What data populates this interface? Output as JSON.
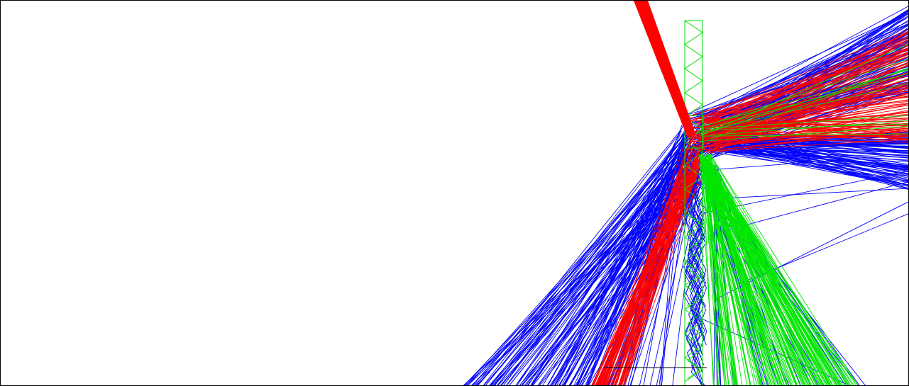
{
  "view": {
    "background": "#ffffff",
    "border_color": "#000000"
  },
  "colors": {
    "incident_beam": "#ff0000",
    "red_rays": "#ff0000",
    "blue_rays": "#0000ff",
    "green_rays": "#00e600",
    "element_outline": "#00dd00",
    "ground_line": "#000000"
  }
}
